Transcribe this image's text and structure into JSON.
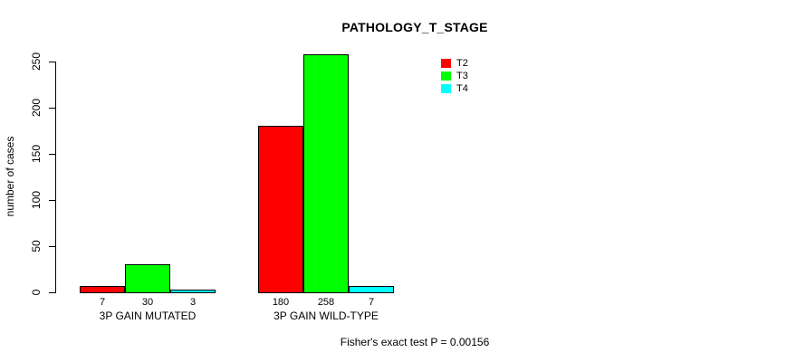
{
  "chart_data": {
    "type": "bar",
    "title": "PATHOLOGY_T_STAGE",
    "ylabel": "number of cases",
    "xlabel": "",
    "categories": [
      "3P GAIN MUTATED",
      "3P GAIN WILD-TYPE"
    ],
    "series": [
      {
        "name": "T2",
        "color": "#FF0000",
        "values": [
          7,
          180
        ]
      },
      {
        "name": "T3",
        "color": "#00FF00",
        "values": [
          30,
          258
        ]
      },
      {
        "name": "T4",
        "color": "#00FFFF",
        "values": [
          3,
          7
        ]
      }
    ],
    "ylim": [
      0,
      250
    ],
    "yticks": [
      0,
      50,
      100,
      150,
      200,
      250
    ],
    "grid": false,
    "legend_position": "top-right-inside",
    "bar_border_color": "#000000",
    "annotation": "Fisher's exact test P = 0.00156"
  }
}
